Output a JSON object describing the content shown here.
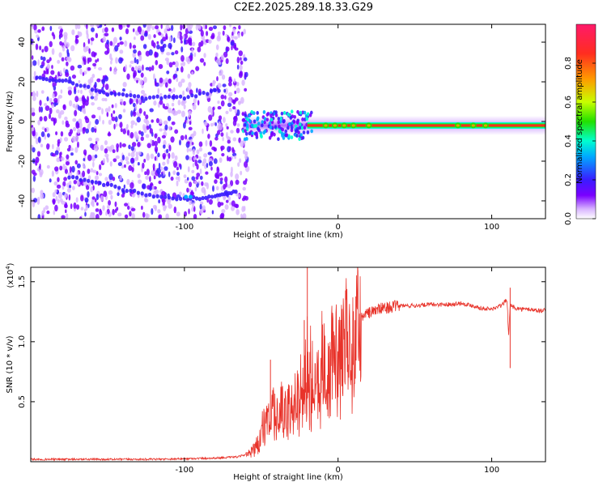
{
  "title": "C2E2.2025.289.18.33.G29",
  "colors": {
    "snr_line": "#e8332a",
    "colormap": [
      "#ffffff",
      "#d8b4ff",
      "#7a00ff",
      "#3a1cff",
      "#00aaff",
      "#00ffd0",
      "#22e000",
      "#c8ff00",
      "#ff9900",
      "#ff2d20",
      "#ff1a6a"
    ]
  },
  "chart_data": [
    {
      "type": "heatmap",
      "name": "spectrogram",
      "title": "C2E2.2025.289.18.33.G29",
      "xlabel": "Height of straight line (km)",
      "ylabel": "Frequency (Hz)",
      "xlim": [
        -200,
        135
      ],
      "ylim": [
        -49,
        49
      ],
      "x_ticks": [
        -100,
        0,
        100
      ],
      "x_tick_labels": [
        "-100",
        "0",
        "100"
      ],
      "y_ticks": [
        -40,
        -20,
        0,
        20,
        40
      ],
      "y_tick_labels": [
        "-40",
        "-20",
        "0",
        "20",
        "40"
      ],
      "colorbar": {
        "label": "Normalized spectral amplitude",
        "range": [
          0,
          1
        ],
        "ticks": [
          0.0,
          0.2,
          0.4,
          0.6,
          0.8
        ],
        "tick_labels": [
          "0.0",
          "0.2",
          "0.4",
          "0.6",
          "0.8"
        ]
      },
      "noise_region": {
        "x_range": [
          -200,
          -62
        ],
        "y_range": [
          -49,
          49
        ],
        "amplitude": 0.12
      },
      "carrier": {
        "x_range": [
          -62,
          135
        ],
        "frequency": -2,
        "peak_amplitude": 1.0
      },
      "faint_traces": [
        {
          "x": [
            -196,
            -175,
            -150,
            -125,
            -100,
            -75
          ],
          "y": [
            22,
            20,
            14,
            12,
            12,
            16
          ]
        },
        {
          "x": [
            -175,
            -150,
            -125,
            -100,
            -80,
            -65
          ],
          "y": [
            -28,
            -32,
            -37,
            -39,
            -38,
            -35
          ]
        }
      ]
    },
    {
      "type": "line",
      "name": "snr",
      "xlabel": "Height of straight line (km)",
      "ylabel": "SNR (10 * v/v)",
      "multiplier_label": "(x10",
      "multiplier_exp": "4",
      "xlim": [
        -200,
        135
      ],
      "ylim": [
        0,
        1.62
      ],
      "x_ticks": [
        -100,
        0,
        100
      ],
      "x_tick_labels": [
        "-100",
        "0",
        "100"
      ],
      "y_ticks": [
        0.5,
        1.0,
        1.5
      ],
      "y_tick_labels": [
        "0.5",
        "1.0",
        "1.5"
      ],
      "series": [
        {
          "name": "SNR",
          "x": [
            -200,
            -160,
            -120,
            -80,
            -65,
            -58,
            -52,
            -48,
            -44,
            -40,
            -36,
            -32,
            -28,
            -24,
            -21,
            -19,
            -17,
            -14,
            -10,
            -6,
            -2,
            2,
            6,
            10,
            14,
            18,
            22,
            26,
            30,
            35,
            40,
            50,
            60,
            70,
            80,
            88,
            93,
            100,
            106,
            110,
            111,
            112,
            116,
            120,
            125,
            130,
            135
          ],
          "y": [
            0.02,
            0.02,
            0.02,
            0.03,
            0.04,
            0.07,
            0.16,
            0.35,
            0.45,
            0.42,
            0.48,
            0.5,
            0.55,
            0.68,
            0.95,
            0.8,
            0.78,
            0.85,
            0.88,
            0.85,
            0.95,
            1.0,
            1.08,
            1.16,
            1.2,
            1.23,
            1.25,
            1.27,
            1.28,
            1.29,
            1.3,
            1.3,
            1.31,
            1.31,
            1.32,
            1.3,
            1.28,
            1.27,
            1.3,
            1.35,
            1.05,
            1.3,
            1.28,
            1.27,
            1.27,
            1.26,
            1.26
          ]
        }
      ],
      "spikes": [
        {
          "x": -20,
          "y": 1.62
        },
        {
          "x": -22,
          "y": 1.18
        },
        {
          "x": -44,
          "y": 0.85
        },
        {
          "x": 112,
          "y": 1.45
        }
      ]
    }
  ]
}
